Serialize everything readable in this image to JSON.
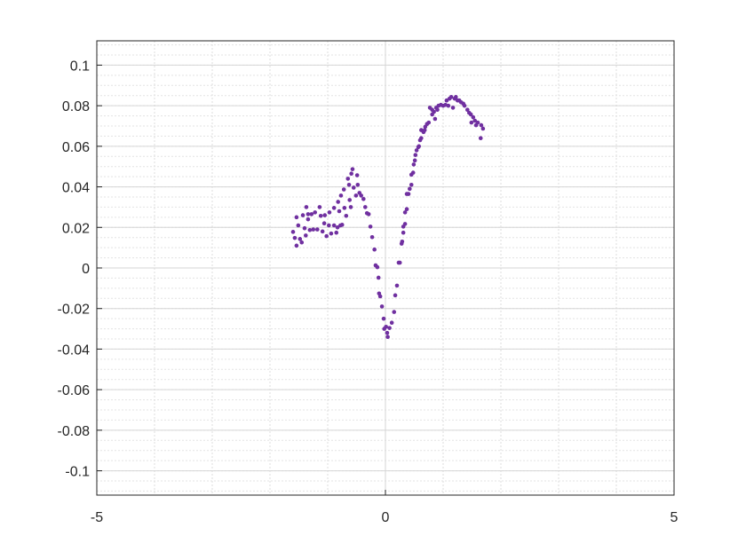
{
  "chart_data": {
    "type": "scatter",
    "title": "",
    "xlabel": "",
    "ylabel": "",
    "xlim": [
      -5,
      5
    ],
    "ylim": [
      -0.112,
      0.112
    ],
    "xticks": [
      -5,
      0,
      5
    ],
    "xtick_labels": [
      "-5",
      "0",
      "5"
    ],
    "yticks": [
      -0.1,
      -0.08,
      -0.06,
      -0.04,
      -0.02,
      0,
      0.02,
      0.04,
      0.06,
      0.08,
      0.1
    ],
    "ytick_labels": [
      "-0.1",
      "-0.08",
      "-0.06",
      "-0.04",
      "-0.02",
      "0",
      "0.02",
      "0.04",
      "0.06",
      "0.08",
      "0.1"
    ],
    "grid": true,
    "minor_grid": true,
    "marker_color": "#7030A0",
    "points": [
      [
        -1.6,
        0.0178
      ],
      [
        -1.57,
        0.0148
      ],
      [
        -1.54,
        0.011
      ],
      [
        -1.54,
        0.025
      ],
      [
        -1.51,
        0.021
      ],
      [
        -1.48,
        0.0143
      ],
      [
        -1.45,
        0.0126
      ],
      [
        -1.43,
        0.026
      ],
      [
        -1.4,
        0.0196
      ],
      [
        -1.38,
        0.016
      ],
      [
        -1.37,
        0.03
      ],
      [
        -1.34,
        0.0265
      ],
      [
        -1.34,
        0.024
      ],
      [
        -1.31,
        0.0187
      ],
      [
        -1.28,
        0.0265
      ],
      [
        -1.25,
        0.019
      ],
      [
        -1.22,
        0.0274
      ],
      [
        -1.18,
        0.019
      ],
      [
        -1.14,
        0.03
      ],
      [
        -1.12,
        0.0257
      ],
      [
        -1.09,
        0.018
      ],
      [
        -1.06,
        0.022
      ],
      [
        -1.05,
        0.026
      ],
      [
        -1.02,
        0.0157
      ],
      [
        -0.98,
        0.021
      ],
      [
        -0.97,
        0.0274
      ],
      [
        -0.94,
        0.017
      ],
      [
        -0.89,
        0.0296
      ],
      [
        -0.89,
        0.021
      ],
      [
        -0.85,
        0.0174
      ],
      [
        -0.83,
        0.02
      ],
      [
        -0.8,
        0.028
      ],
      [
        -0.78,
        0.021
      ],
      [
        -0.75,
        0.0213
      ],
      [
        -0.82,
        0.0326
      ],
      [
        -0.77,
        0.0357
      ],
      [
        -0.72,
        0.0387
      ],
      [
        -0.71,
        0.0296
      ],
      [
        -0.68,
        0.0257
      ],
      [
        -0.65,
        0.044
      ],
      [
        -0.63,
        0.041
      ],
      [
        -0.62,
        0.0335
      ],
      [
        -0.6,
        0.03
      ],
      [
        -0.59,
        0.0465
      ],
      [
        -0.57,
        0.0487
      ],
      [
        -0.55,
        0.0396
      ],
      [
        -0.49,
        0.0457
      ],
      [
        -0.51,
        0.0357
      ],
      [
        -0.48,
        0.041
      ],
      [
        -0.45,
        0.037
      ],
      [
        -0.42,
        0.0357
      ],
      [
        -0.38,
        0.034
      ],
      [
        -0.35,
        0.03
      ],
      [
        -0.32,
        0.027
      ],
      [
        -0.29,
        0.0265
      ],
      [
        -0.26,
        0.0204
      ],
      [
        -0.23,
        0.0152
      ],
      [
        -0.19,
        0.0091
      ],
      [
        -0.17,
        0.0013
      ],
      [
        -0.14,
        0.0004
      ],
      [
        -0.12,
        -0.0048
      ],
      [
        -0.11,
        -0.0126
      ],
      [
        -0.09,
        -0.014
      ],
      [
        -0.06,
        -0.019
      ],
      [
        -0.03,
        -0.025
      ],
      [
        -0.02,
        -0.03
      ],
      [
        0.01,
        -0.029
      ],
      [
        0.04,
        -0.034
      ],
      [
        0.03,
        -0.032
      ],
      [
        0.07,
        -0.0296
      ],
      [
        0.11,
        -0.027
      ],
      [
        0.15,
        -0.0217
      ],
      [
        0.17,
        -0.0135
      ],
      [
        0.2,
        -0.0087
      ],
      [
        0.23,
        0.0026
      ],
      [
        0.25,
        0.0026
      ],
      [
        0.28,
        0.012
      ],
      [
        0.29,
        0.013
      ],
      [
        0.31,
        0.0174
      ],
      [
        0.31,
        0.0204
      ],
      [
        0.34,
        0.0217
      ],
      [
        0.34,
        0.0274
      ],
      [
        0.37,
        0.029
      ],
      [
        0.37,
        0.0365
      ],
      [
        0.4,
        0.0365
      ],
      [
        0.42,
        0.039
      ],
      [
        0.45,
        0.041
      ],
      [
        0.45,
        0.046
      ],
      [
        0.48,
        0.047
      ],
      [
        0.49,
        0.051
      ],
      [
        0.51,
        0.053
      ],
      [
        0.52,
        0.0557
      ],
      [
        0.54,
        0.058
      ],
      [
        0.57,
        0.0596
      ],
      [
        0.58,
        0.06
      ],
      [
        0.6,
        0.063
      ],
      [
        0.62,
        0.064
      ],
      [
        0.62,
        0.068
      ],
      [
        0.66,
        0.067
      ],
      [
        0.68,
        0.068
      ],
      [
        0.69,
        0.0696
      ],
      [
        0.72,
        0.071
      ],
      [
        0.75,
        0.0717
      ],
      [
        0.77,
        0.079
      ],
      [
        0.81,
        0.0757
      ],
      [
        0.81,
        0.078
      ],
      [
        0.84,
        0.077
      ],
      [
        0.86,
        0.0735
      ],
      [
        0.88,
        0.079
      ],
      [
        0.9,
        0.078
      ],
      [
        0.92,
        0.08
      ],
      [
        0.96,
        0.0804
      ],
      [
        1.0,
        0.08
      ],
      [
        1.04,
        0.0804
      ],
      [
        1.06,
        0.0826
      ],
      [
        1.09,
        0.08
      ],
      [
        1.11,
        0.0835
      ],
      [
        1.14,
        0.0843
      ],
      [
        1.17,
        0.079
      ],
      [
        1.2,
        0.0835
      ],
      [
        1.22,
        0.0843
      ],
      [
        1.25,
        0.0826
      ],
      [
        1.28,
        0.0826
      ],
      [
        1.31,
        0.0817
      ],
      [
        1.35,
        0.081
      ],
      [
        1.37,
        0.08
      ],
      [
        1.42,
        0.078
      ],
      [
        1.45,
        0.0765
      ],
      [
        1.48,
        0.0757
      ],
      [
        1.49,
        0.0717
      ],
      [
        1.52,
        0.0743
      ],
      [
        1.55,
        0.0726
      ],
      [
        1.57,
        0.0704
      ],
      [
        1.6,
        0.0717
      ],
      [
        1.65,
        0.064
      ],
      [
        1.66,
        0.0704
      ],
      [
        1.69,
        0.0687
      ]
    ]
  }
}
